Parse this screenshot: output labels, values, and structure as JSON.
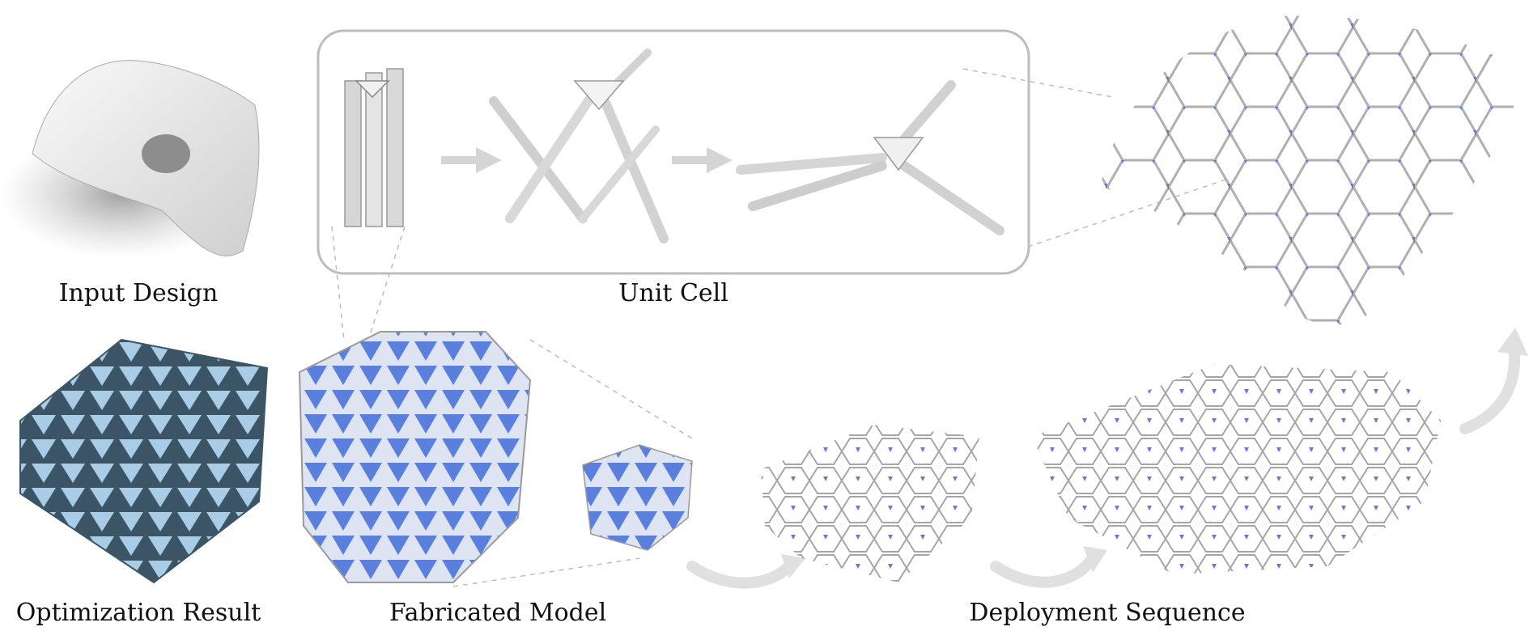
{
  "captions": {
    "input_design": "Input Design",
    "unit_cell": "Unit Cell",
    "optimization_result": "Optimization Result",
    "fabricated_model": "Fabricated Model",
    "deployment_sequence": "Deployment Sequence"
  },
  "colors": {
    "tile_blue": "#5b7fdc",
    "opt_blue": "#a9cde6",
    "frame_gray": "#bdbdbd",
    "arrow_gray": "#e0e0e0",
    "material_white": "#efefef",
    "strut_gray": "#9a9a9a"
  },
  "icons": [
    "arrow-right-icon",
    "curved-arrow-icon"
  ]
}
